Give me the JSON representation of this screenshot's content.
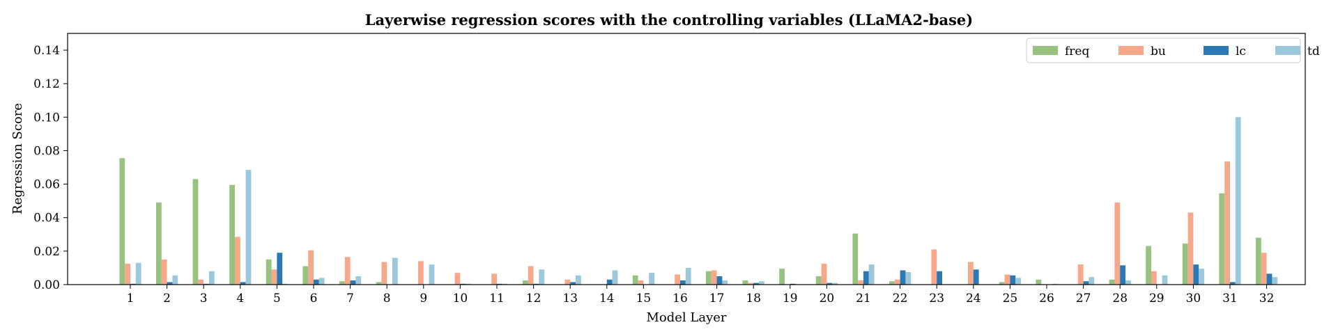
{
  "chart_data": {
    "type": "bar",
    "title": "Layerwise regression scores with the controlling variables (LLaMA2-base)",
    "xlabel": "Model Layer",
    "ylabel": "Regression Score",
    "ylim": [
      0,
      0.15
    ],
    "yticks": [
      "0.00",
      "0.02",
      "0.04",
      "0.06",
      "0.08",
      "0.10",
      "0.12",
      "0.14"
    ],
    "ytick_values": [
      0,
      0.02,
      0.04,
      0.06,
      0.08,
      0.1,
      0.12,
      0.14
    ],
    "grid": false,
    "legend_position": "top-right",
    "categories": [
      "1",
      "2",
      "3",
      "4",
      "5",
      "6",
      "7",
      "8",
      "9",
      "10",
      "11",
      "12",
      "13",
      "14",
      "15",
      "16",
      "17",
      "18",
      "19",
      "20",
      "21",
      "22",
      "23",
      "24",
      "25",
      "26",
      "27",
      "28",
      "29",
      "30",
      "31",
      "32"
    ],
    "series": [
      {
        "name": "freq",
        "color": "#98c27f",
        "values": [
          0.0755,
          0.049,
          0.063,
          0.0595,
          0.015,
          0.011,
          0.002,
          0.0015,
          0.0,
          0.0,
          0.0,
          0.0025,
          0.0,
          0.0,
          0.0055,
          0.0,
          0.008,
          0.0025,
          0.0095,
          0.005,
          0.0305,
          0.002,
          0.0,
          0.0,
          0.0015,
          0.003,
          0.0,
          0.003,
          0.023,
          0.0245,
          0.0545,
          0.028
        ]
      },
      {
        "name": "bu",
        "color": "#f6a98a",
        "values": [
          0.0125,
          0.015,
          0.003,
          0.0285,
          0.009,
          0.0205,
          0.0165,
          0.0135,
          0.014,
          0.007,
          0.0065,
          0.011,
          0.003,
          0.0,
          0.0025,
          0.006,
          0.0085,
          0.001,
          0.0,
          0.0125,
          0.0025,
          0.003,
          0.021,
          0.0135,
          0.006,
          0.0,
          0.012,
          0.049,
          0.008,
          0.043,
          0.0735,
          0.019
        ]
      },
      {
        "name": "lc",
        "color": "#2b79b4",
        "values": [
          0.0005,
          0.0015,
          0.0005,
          0.0015,
          0.019,
          0.003,
          0.0025,
          0.0,
          0.0,
          0.0005,
          0.0005,
          0.0005,
          0.0015,
          0.003,
          0.0,
          0.0025,
          0.005,
          0.001,
          0.0005,
          0.001,
          0.008,
          0.0085,
          0.008,
          0.009,
          0.0055,
          0.0,
          0.002,
          0.0115,
          0.0,
          0.012,
          0.0015,
          0.0065
        ]
      },
      {
        "name": "td",
        "color": "#9bc8db",
        "values": [
          0.013,
          0.0055,
          0.008,
          0.0685,
          0.0005,
          0.004,
          0.005,
          0.016,
          0.012,
          0.0005,
          0.0005,
          0.009,
          0.0055,
          0.0085,
          0.007,
          0.01,
          0.0025,
          0.002,
          0.0,
          0.001,
          0.012,
          0.0075,
          0.0,
          0.0,
          0.004,
          0.0005,
          0.0045,
          0.0025,
          0.0055,
          0.0095,
          0.1,
          0.0045
        ]
      }
    ]
  }
}
